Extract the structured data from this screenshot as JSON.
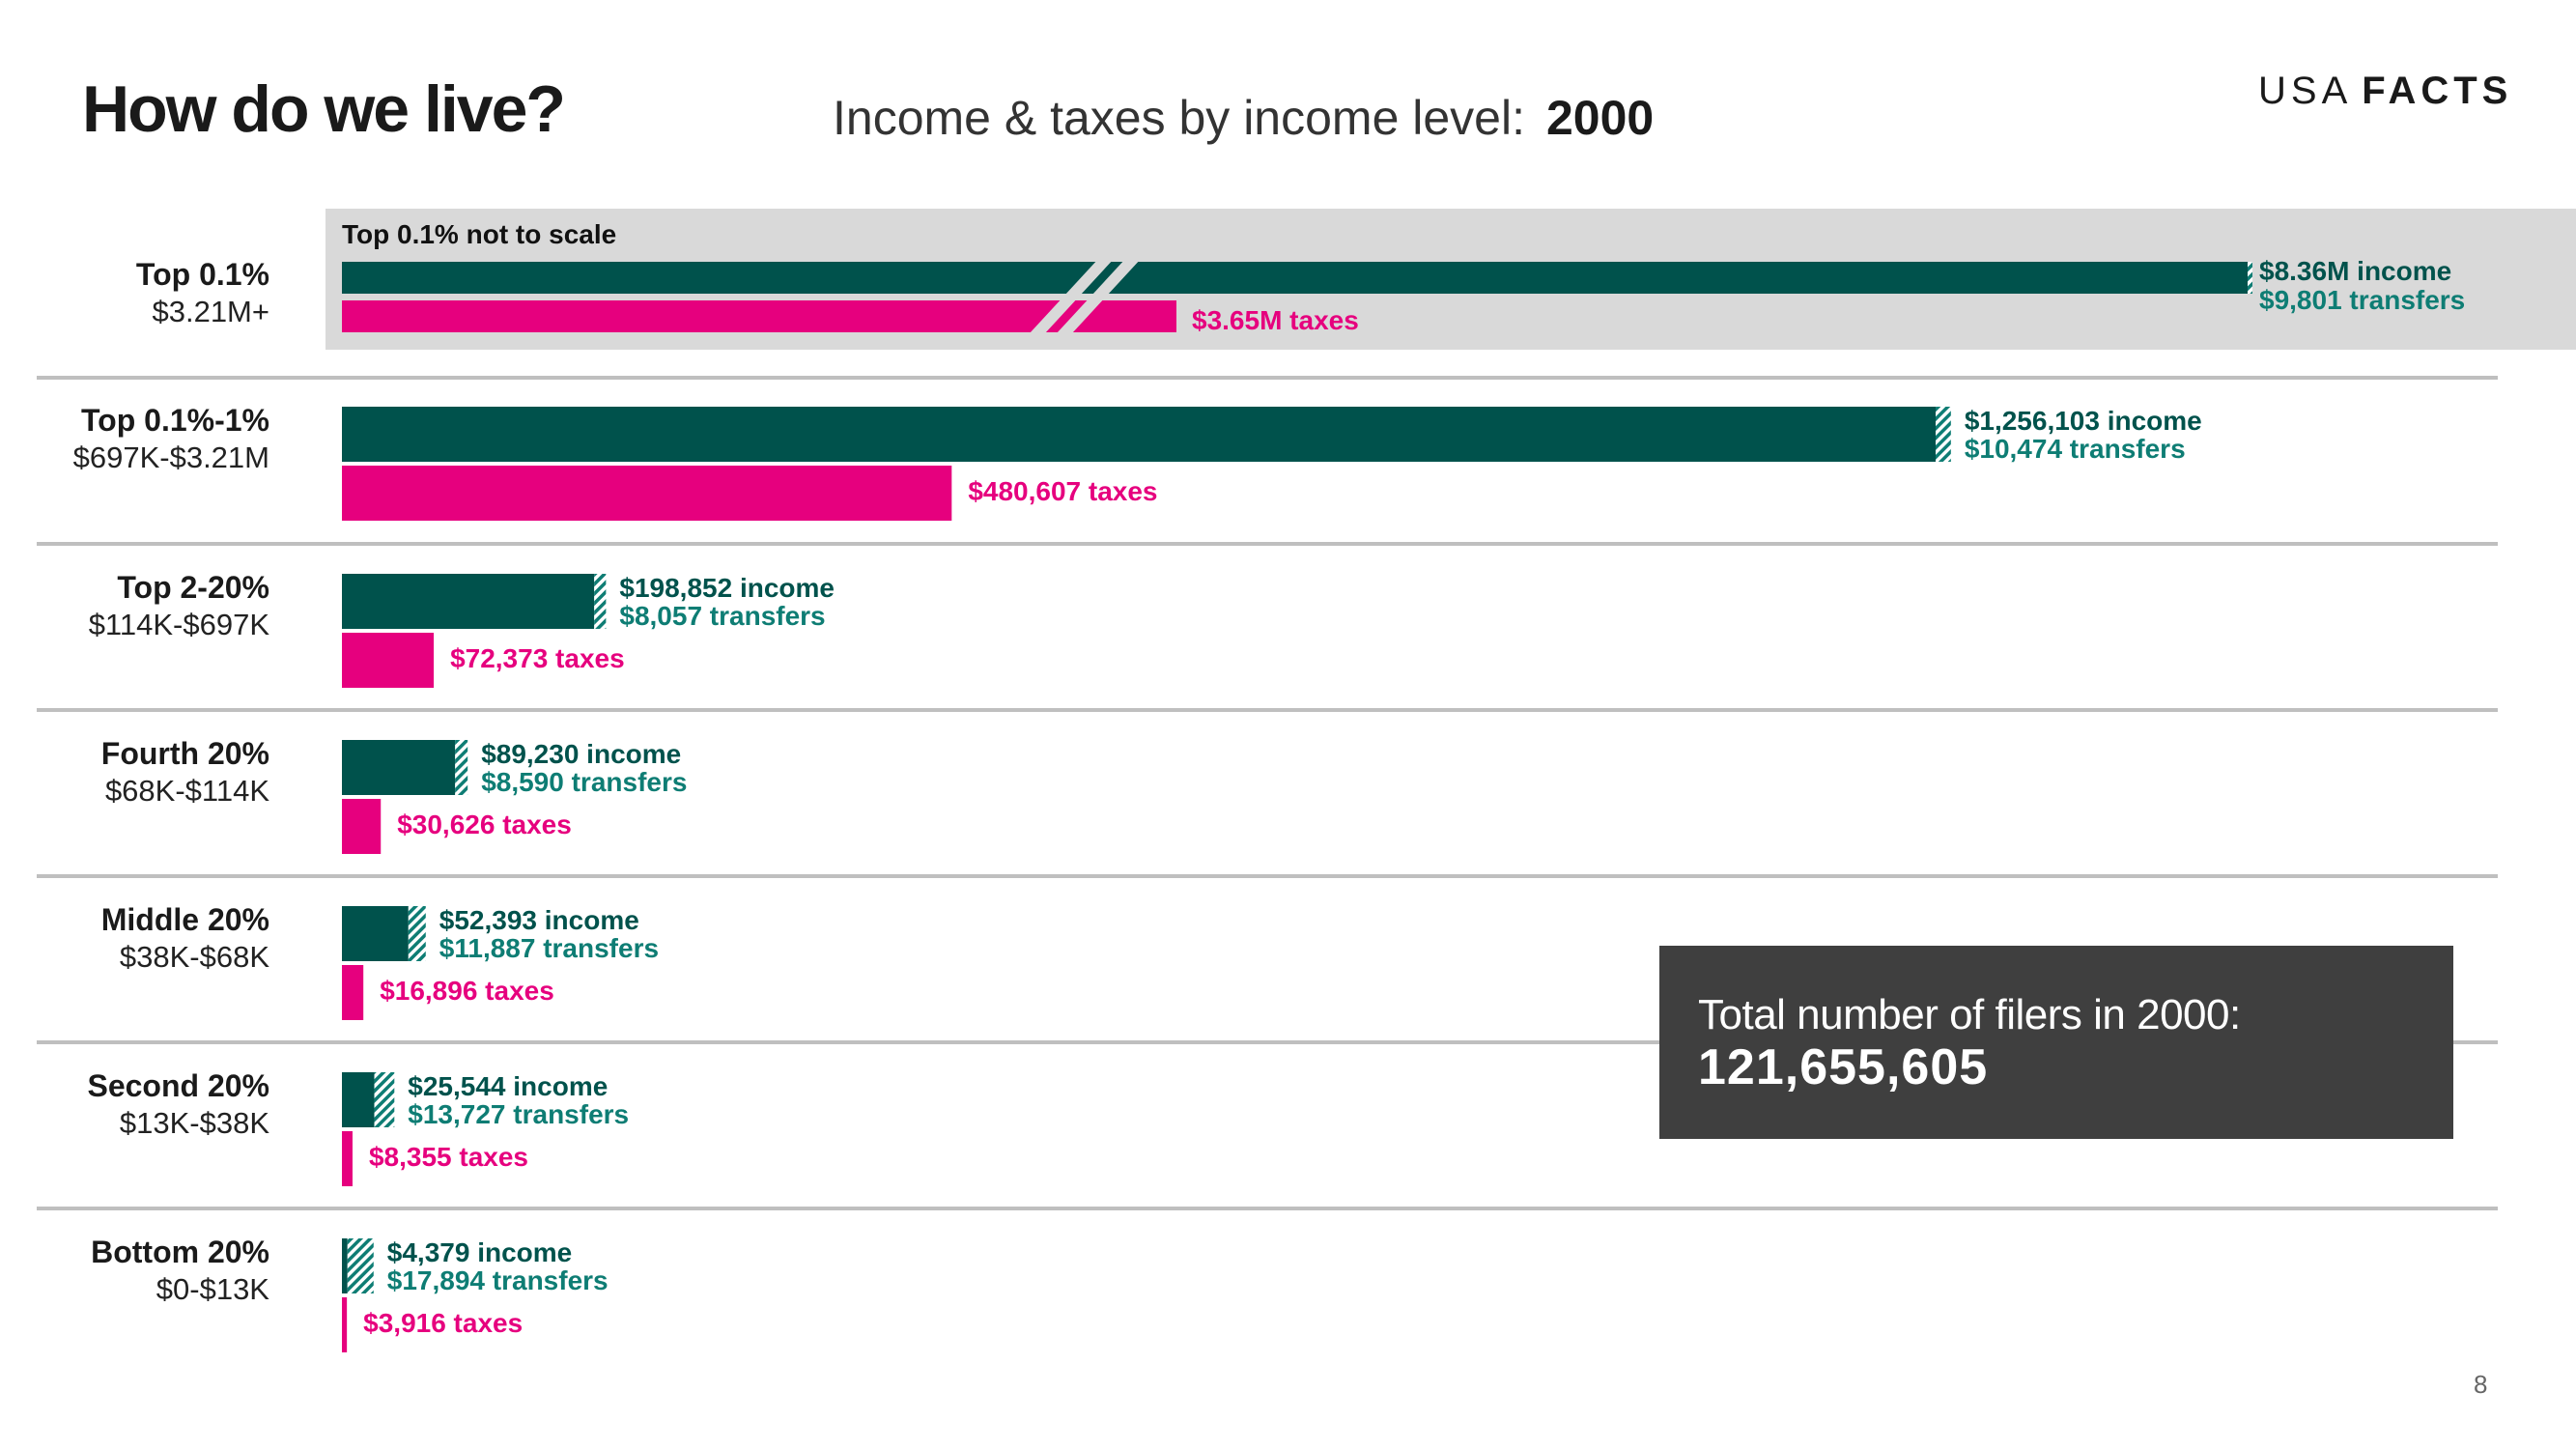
{
  "header": {
    "title": "How do we live?",
    "chart_title": "Income & taxes by income level:",
    "chart_year": "2000",
    "logo_left": "USA",
    "logo_right": "FACTS"
  },
  "page_number": "8",
  "callout": {
    "text": "Total number of filers in 2000:",
    "value": "121,655,605"
  },
  "colors": {
    "income": "#00524c",
    "transfers": "#0e7d74",
    "taxes": "#e6007e",
    "highlight_band": "#d9d9d9",
    "divider": "#bfbfbf"
  },
  "chart_data": {
    "type": "bar",
    "title": "Income & taxes by income level: 2000",
    "note": "Top 0.1% not to scale",
    "categories": [
      "Top 0.1%",
      "Top 0.1%-1%",
      "Top 2-20%",
      "Fourth 20%",
      "Middle 20%",
      "Second 20%",
      "Bottom 20%"
    ],
    "ranges": [
      "$3.21M+",
      "$697K-$3.21M",
      "$114K-$697K",
      "$68K-$114K",
      "$38K-$68K",
      "$13K-$38K",
      "$0-$13K"
    ],
    "series": [
      {
        "name": "income",
        "values": [
          8360000,
          1256103,
          198852,
          89230,
          52393,
          25544,
          4379
        ]
      },
      {
        "name": "transfers",
        "values": [
          9801,
          10474,
          8057,
          8590,
          11887,
          13727,
          17894
        ]
      },
      {
        "name": "taxes",
        "values": [
          3650000,
          480607,
          72373,
          30626,
          16896,
          8355,
          3916
        ]
      }
    ],
    "labels": {
      "income": [
        "$8.36M income",
        "$1,256,103 income",
        "$198,852 income",
        "$89,230 income",
        "$52,393 income",
        "$25,544 income",
        "$4,379 income"
      ],
      "transfers": [
        "$9,801 transfers",
        "$10,474 transfers",
        "$8,057 transfers",
        "$8,590 transfers",
        "$11,887 transfers",
        "$13,727 transfers",
        "$17,894 transfers"
      ],
      "taxes": [
        "$3.65M taxes",
        "$480,607 taxes",
        "$72,373 taxes",
        "$30,626 taxes",
        "$16,896 taxes",
        "$8,355 taxes",
        "$3,916 taxes"
      ]
    }
  }
}
